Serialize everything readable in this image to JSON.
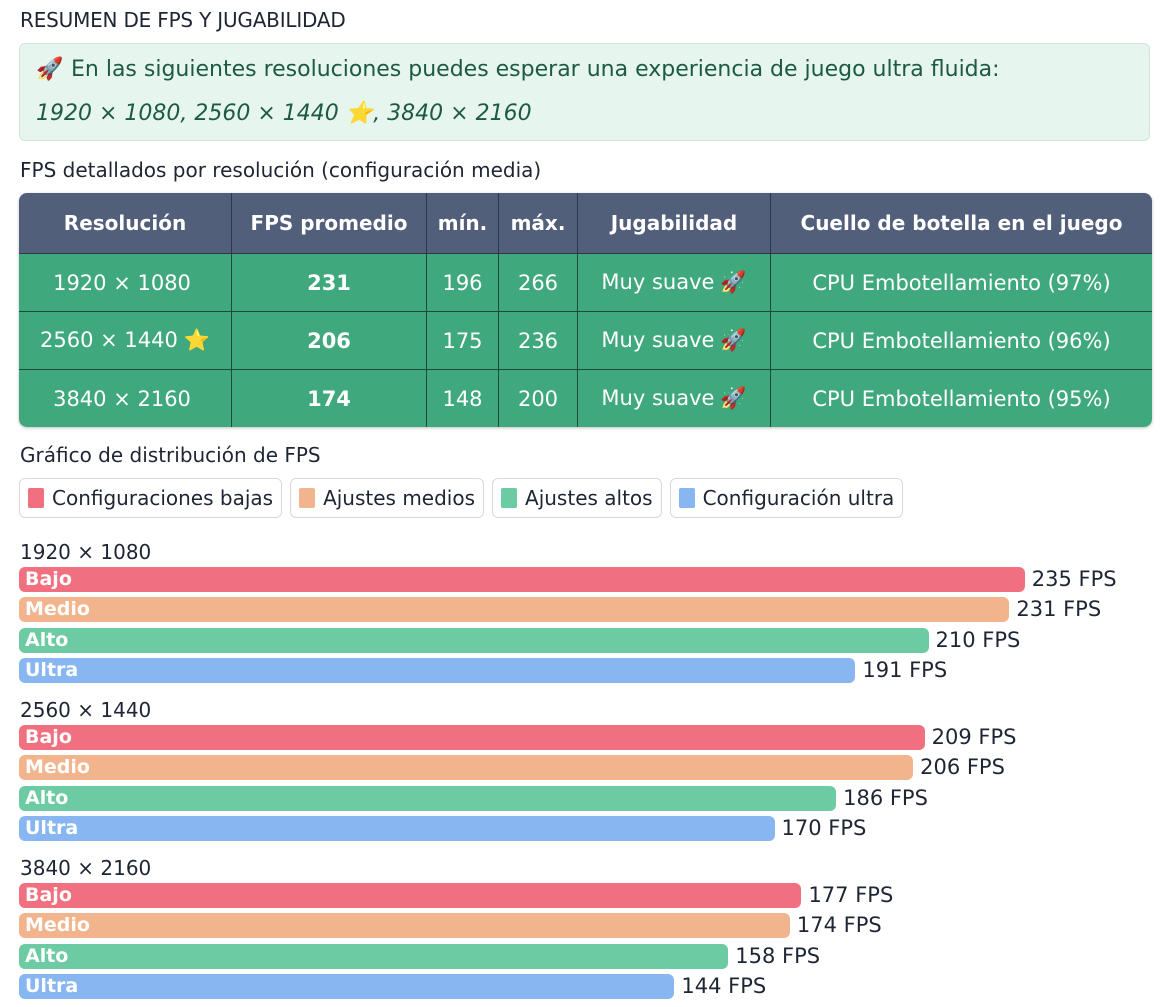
{
  "page": {
    "title": "RESUMEN DE FPS Y JUGABILIDAD",
    "callout": {
      "rocket_icon": "🚀",
      "text": "En las siguientes resoluciones puedes esperar una experiencia de juego ultra fluida:",
      "resolutions": "1920 × 1080, 2560 × 1440",
      "star_icon": "⭐",
      "resolutions_tail": ", 3840 × 2160"
    },
    "table_title": "FPS detallados por resolución (configuración media)",
    "table": {
      "headers": [
        "Resolución",
        "FPS promedio",
        "mín.",
        "máx.",
        "Jugabilidad",
        "Cuello de botella en el juego"
      ],
      "rows": [
        {
          "resolution": "1920 × 1080",
          "star": "",
          "avg": "231",
          "min": "196",
          "max": "266",
          "playability": "Muy suave",
          "icon": "🚀",
          "bottleneck": "CPU Embotellamiento (97%)"
        },
        {
          "resolution": "2560 × 1440",
          "star": "⭐",
          "avg": "206",
          "min": "175",
          "max": "236",
          "playability": "Muy suave",
          "icon": "🚀",
          "bottleneck": "CPU Embotellamiento (96%)"
        },
        {
          "resolution": "3840 × 2160",
          "star": "",
          "avg": "174",
          "min": "148",
          "max": "200",
          "playability": "Muy suave",
          "icon": "🚀",
          "bottleneck": "CPU Embotellamiento (95%)"
        }
      ]
    },
    "chart_title": "Gráfico de distribución de FPS"
  },
  "colors": {
    "header_bg": "#525f7a",
    "row_bg": "#3fa87c",
    "callout_bg": "#e6f5ee",
    "low": "#f07080",
    "medium": "#f2b48c",
    "high": "#6ccba3",
    "ultra": "#88b6f0"
  },
  "chart_data": {
    "type": "bar",
    "orientation": "horizontal",
    "title": "Gráfico de distribución de FPS",
    "legend": [
      "Configuraciones bajas",
      "Ajustes medios",
      "Ajustes altos",
      "Configuración ultra"
    ],
    "legend_placement": "top-left",
    "series_labels": [
      "Bajo",
      "Medio",
      "Alto",
      "Ultra"
    ],
    "value_suffix": " FPS",
    "groups": [
      {
        "label": "1920 × 1080",
        "values": [
          235,
          231,
          210,
          191
        ]
      },
      {
        "label": "2560 × 1440",
        "values": [
          209,
          206,
          186,
          170
        ]
      },
      {
        "label": "3840 × 2160",
        "values": [
          177,
          174,
          158,
          144
        ]
      }
    ],
    "xlabel": "",
    "ylabel": "",
    "grid": false
  }
}
